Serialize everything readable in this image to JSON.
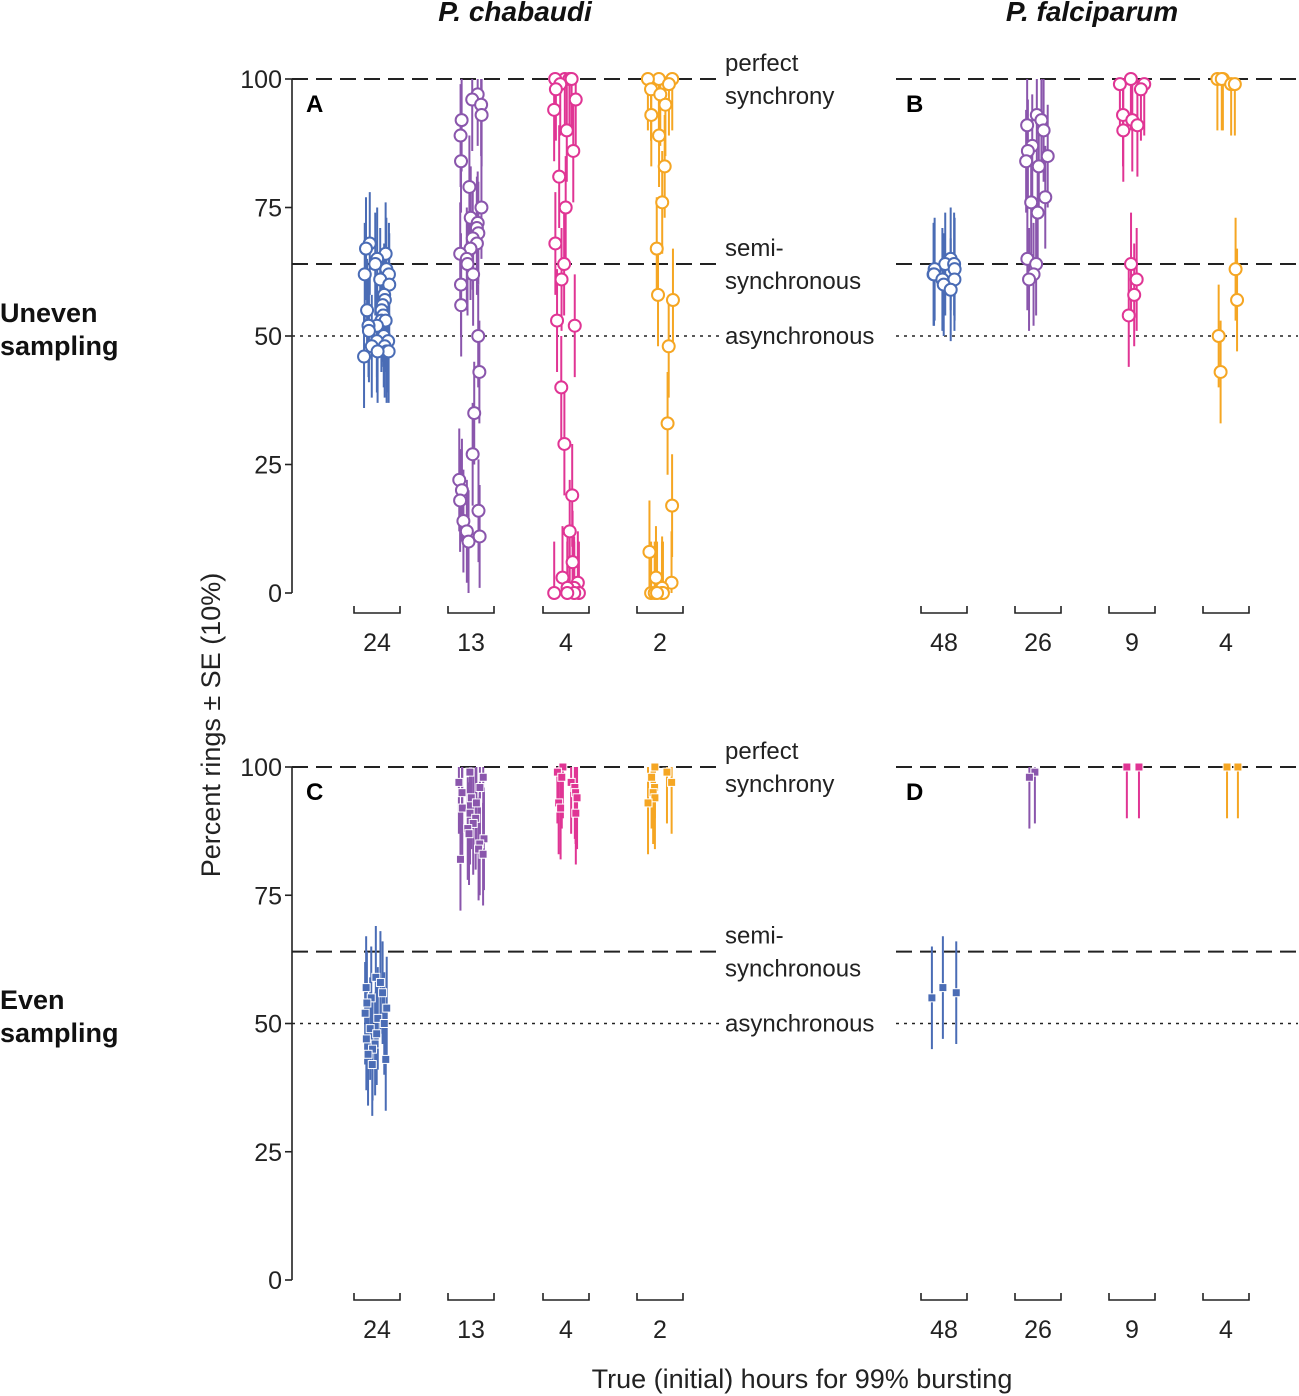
{
  "figure": {
    "col_titles": [
      "P. chabaudi",
      "P. falciparum"
    ],
    "row_labels": [
      "Uneven\nsampling",
      "Even\nsampling"
    ],
    "ylabel": "Percent rings ± SE (10%)",
    "xlabel": "True (initial) hours for 99% bursting",
    "reference_lines": [
      {
        "value": 100,
        "style": "dashed",
        "label": "perfect\nsynchrony"
      },
      {
        "value": 64,
        "style": "dashed",
        "label": "semi-\nsynchronous"
      },
      {
        "value": 50,
        "style": "dotted",
        "label": "asynchronous"
      }
    ]
  },
  "colors": {
    "blue": "#4a6cb5",
    "purple": "#8a56ac",
    "pink": "#e03594",
    "gold": "#f5a623",
    "axis": "#222222"
  },
  "chart_data": [
    {
      "panel": "A",
      "type": "scatter",
      "species": "P. chabaudi",
      "sampling": "uneven",
      "marker": "circle",
      "ylim": [
        0,
        100
      ],
      "yticks": [
        0,
        25,
        50,
        75,
        100
      ],
      "categories": [
        "24",
        "13",
        "4",
        "2"
      ],
      "se": 10,
      "series": [
        {
          "name": "24",
          "color": "blue",
          "values": [
            68,
            67,
            66,
            65,
            64,
            63,
            62,
            62,
            61,
            60,
            58,
            57,
            56,
            55,
            55,
            54,
            53,
            53,
            52,
            52,
            51,
            50,
            49,
            49,
            48,
            48,
            47,
            47,
            47,
            46
          ]
        },
        {
          "name": "13",
          "color": "purple",
          "values": [
            97,
            96,
            95,
            93,
            92,
            89,
            84,
            79,
            75,
            73,
            72,
            71,
            70,
            69,
            68,
            67,
            66,
            65,
            64,
            62,
            60,
            56,
            50,
            43,
            35,
            27,
            22,
            20,
            18,
            16,
            14,
            12,
            11,
            10
          ]
        },
        {
          "name": "4",
          "color": "pink",
          "values": [
            100,
            100,
            100,
            100,
            99,
            98,
            96,
            94,
            90,
            86,
            81,
            75,
            68,
            64,
            61,
            53,
            52,
            40,
            29,
            19,
            12,
            6,
            3,
            2,
            1,
            1,
            0,
            0,
            0,
            0
          ]
        },
        {
          "name": "2",
          "color": "gold",
          "values": [
            100,
            100,
            100,
            99,
            98,
            97,
            95,
            93,
            89,
            83,
            76,
            67,
            58,
            57,
            48,
            33,
            17,
            8,
            3,
            2,
            1,
            0,
            0,
            0,
            0,
            0
          ]
        }
      ]
    },
    {
      "panel": "B",
      "type": "scatter",
      "species": "P. falciparum",
      "sampling": "uneven",
      "marker": "circle",
      "ylim": [
        0,
        100
      ],
      "yticks": [
        0,
        25,
        50,
        75,
        100
      ],
      "categories": [
        "48",
        "26",
        "9",
        "4"
      ],
      "se": 10,
      "series": [
        {
          "name": "48",
          "color": "blue",
          "values": [
            65,
            64,
            64,
            63,
            63,
            62,
            62,
            61,
            61,
            60,
            59
          ]
        },
        {
          "name": "26",
          "color": "purple",
          "values": [
            93,
            92,
            91,
            90,
            87,
            86,
            85,
            84,
            83,
            77,
            76,
            74,
            65,
            64,
            62,
            61
          ]
        },
        {
          "name": "9",
          "color": "pink",
          "values": [
            100,
            99,
            99,
            98,
            93,
            92,
            91,
            90,
            64,
            61,
            58,
            54
          ]
        },
        {
          "name": "4",
          "color": "gold",
          "values": [
            100,
            100,
            100,
            99,
            99,
            63,
            57,
            50,
            43
          ]
        }
      ]
    },
    {
      "panel": "C",
      "type": "scatter",
      "species": "P. chabaudi",
      "sampling": "even",
      "marker": "square",
      "ylim": [
        0,
        100
      ],
      "yticks": [
        0,
        25,
        50,
        75,
        100
      ],
      "categories": [
        "24",
        "13",
        "4",
        "2"
      ],
      "se": 10,
      "series": [
        {
          "name": "24",
          "color": "blue",
          "values": [
            59,
            58,
            57,
            56,
            55,
            54,
            53,
            52,
            51,
            50,
            49,
            48,
            47,
            46,
            45,
            44,
            43,
            42
          ]
        },
        {
          "name": "13",
          "color": "purple",
          "values": [
            99,
            98,
            97,
            96,
            95,
            94,
            93,
            92,
            91,
            90,
            89,
            88,
            87,
            86,
            85,
            84,
            83,
            82
          ]
        },
        {
          "name": "4",
          "color": "pink",
          "values": [
            100,
            99,
            98,
            97,
            96,
            95,
            94,
            93,
            92,
            91
          ]
        },
        {
          "name": "2",
          "color": "gold",
          "values": [
            100,
            99,
            98,
            97,
            96,
            95,
            94,
            93
          ]
        }
      ]
    },
    {
      "panel": "D",
      "type": "scatter",
      "species": "P. falciparum",
      "sampling": "even",
      "marker": "square",
      "ylim": [
        0,
        100
      ],
      "yticks": [
        0,
        25,
        50,
        75,
        100
      ],
      "categories": [
        "48",
        "26",
        "9",
        "4"
      ],
      "se": 10,
      "series": [
        {
          "name": "48",
          "color": "blue",
          "values": [
            57,
            56,
            55
          ]
        },
        {
          "name": "26",
          "color": "purple",
          "values": [
            99,
            98
          ]
        },
        {
          "name": "9",
          "color": "pink",
          "values": [
            100,
            100
          ]
        },
        {
          "name": "4",
          "color": "gold",
          "values": [
            100,
            100
          ]
        }
      ]
    }
  ]
}
